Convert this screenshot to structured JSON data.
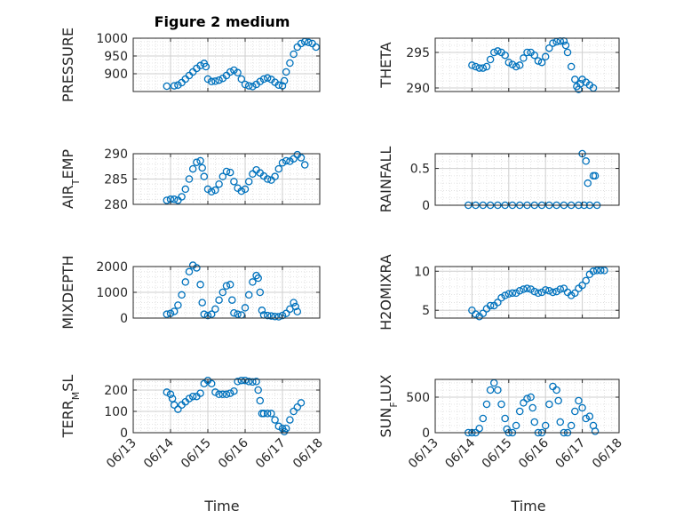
{
  "figure": {
    "title": "Figure 2 medium",
    "x_axis_label": "Time"
  },
  "style": {
    "marker_color": "#0072BD",
    "grid_color": "#dcdcdc",
    "axis_color": "#262626"
  },
  "x_ticks": [
    "06/13",
    "06/14",
    "06/15",
    "06/16",
    "06/17",
    "06/18"
  ],
  "chart_data": [
    {
      "type": "scatter",
      "ylabel_main": "PRESSURE",
      "ylabel_sub": "",
      "ylabel_rest": "",
      "ylim": [
        850,
        1000
      ],
      "yticks": [
        900,
        950,
        1000
      ],
      "xlim": [
        0,
        5
      ],
      "grid": true,
      "points": [
        [
          0.9,
          865
        ],
        [
          1.1,
          866
        ],
        [
          1.2,
          868
        ],
        [
          1.3,
          875
        ],
        [
          1.4,
          885
        ],
        [
          1.5,
          895
        ],
        [
          1.6,
          905
        ],
        [
          1.7,
          915
        ],
        [
          1.8,
          923
        ],
        [
          1.9,
          929
        ],
        [
          1.95,
          920
        ],
        [
          2.0,
          885
        ],
        [
          2.1,
          878
        ],
        [
          2.2,
          879
        ],
        [
          2.3,
          882
        ],
        [
          2.4,
          887
        ],
        [
          2.5,
          895
        ],
        [
          2.6,
          905
        ],
        [
          2.7,
          910
        ],
        [
          2.8,
          903
        ],
        [
          2.9,
          885
        ],
        [
          3.0,
          870
        ],
        [
          3.1,
          866
        ],
        [
          3.2,
          864
        ],
        [
          3.3,
          870
        ],
        [
          3.4,
          878
        ],
        [
          3.5,
          885
        ],
        [
          3.6,
          888
        ],
        [
          3.7,
          884
        ],
        [
          3.8,
          876
        ],
        [
          3.9,
          868
        ],
        [
          4.0,
          866
        ],
        [
          4.05,
          880
        ],
        [
          4.1,
          905
        ],
        [
          4.2,
          930
        ],
        [
          4.3,
          955
        ],
        [
          4.4,
          975
        ],
        [
          4.5,
          985
        ],
        [
          4.6,
          990
        ],
        [
          4.7,
          988
        ],
        [
          4.8,
          985
        ],
        [
          4.9,
          975
        ]
      ]
    },
    {
      "type": "scatter",
      "ylabel_main": "THETA",
      "ylabel_sub": "",
      "ylabel_rest": "",
      "ylim": [
        289.5,
        297
      ],
      "yticks": [
        290,
        295
      ],
      "xlim": [
        0,
        5
      ],
      "grid": true,
      "points": [
        [
          1.0,
          293.2
        ],
        [
          1.1,
          293.0
        ],
        [
          1.2,
          292.8
        ],
        [
          1.3,
          292.8
        ],
        [
          1.4,
          293.0
        ],
        [
          1.5,
          294.0
        ],
        [
          1.6,
          295.0
        ],
        [
          1.7,
          295.2
        ],
        [
          1.8,
          295.0
        ],
        [
          1.9,
          294.6
        ],
        [
          2.0,
          293.6
        ],
        [
          2.1,
          293.3
        ],
        [
          2.2,
          293.0
        ],
        [
          2.3,
          293.2
        ],
        [
          2.4,
          294.2
        ],
        [
          2.5,
          295.0
        ],
        [
          2.6,
          295.0
        ],
        [
          2.7,
          294.6
        ],
        [
          2.8,
          293.8
        ],
        [
          2.9,
          293.6
        ],
        [
          3.0,
          294.4
        ],
        [
          3.1,
          295.6
        ],
        [
          3.2,
          296.3
        ],
        [
          3.3,
          296.5
        ],
        [
          3.4,
          296.6
        ],
        [
          3.5,
          296.6
        ],
        [
          3.55,
          296.0
        ],
        [
          3.6,
          295.0
        ],
        [
          3.7,
          293.0
        ],
        [
          3.8,
          291.2
        ],
        [
          3.85,
          290.2
        ],
        [
          3.9,
          289.8
        ],
        [
          3.95,
          290.6
        ],
        [
          4.0,
          291.2
        ],
        [
          4.1,
          290.8
        ],
        [
          4.2,
          290.4
        ],
        [
          4.3,
          290.0
        ]
      ]
    },
    {
      "type": "scatter",
      "ylabel_main": "AIR",
      "ylabel_sub": "T",
      "ylabel_rest": "EMP",
      "ylim": [
        280,
        290
      ],
      "yticks": [
        280,
        285,
        290
      ],
      "xlim": [
        0,
        5
      ],
      "grid": true,
      "points": [
        [
          0.9,
          280.8
        ],
        [
          1.0,
          281.0
        ],
        [
          1.1,
          281.0
        ],
        [
          1.2,
          280.8
        ],
        [
          1.3,
          281.5
        ],
        [
          1.4,
          283.0
        ],
        [
          1.5,
          285.0
        ],
        [
          1.6,
          287.0
        ],
        [
          1.7,
          288.3
        ],
        [
          1.8,
          288.6
        ],
        [
          1.85,
          287.2
        ],
        [
          1.9,
          285.5
        ],
        [
          2.0,
          283.0
        ],
        [
          2.1,
          282.5
        ],
        [
          2.2,
          282.8
        ],
        [
          2.3,
          284.0
        ],
        [
          2.4,
          285.5
        ],
        [
          2.5,
          286.5
        ],
        [
          2.6,
          286.3
        ],
        [
          2.7,
          284.5
        ],
        [
          2.8,
          283.2
        ],
        [
          2.9,
          282.6
        ],
        [
          3.0,
          283.0
        ],
        [
          3.1,
          284.5
        ],
        [
          3.2,
          286.0
        ],
        [
          3.3,
          286.8
        ],
        [
          3.4,
          286.2
        ],
        [
          3.5,
          285.6
        ],
        [
          3.6,
          285.0
        ],
        [
          3.7,
          284.8
        ],
        [
          3.8,
          285.5
        ],
        [
          3.9,
          287.0
        ],
        [
          4.0,
          288.2
        ],
        [
          4.1,
          288.6
        ],
        [
          4.2,
          288.5
        ],
        [
          4.3,
          289.0
        ],
        [
          4.4,
          289.8
        ],
        [
          4.5,
          289.2
        ],
        [
          4.6,
          287.8
        ]
      ]
    },
    {
      "type": "scatter",
      "ylabel_main": "RAINFALL",
      "ylabel_sub": "",
      "ylabel_rest": "",
      "ylim": [
        0,
        0.7
      ],
      "yticks": [
        0,
        0.5
      ],
      "xlim": [
        0,
        5
      ],
      "grid": true,
      "points": [
        [
          0.9,
          0
        ],
        [
          1.1,
          0
        ],
        [
          1.3,
          0
        ],
        [
          1.5,
          0
        ],
        [
          1.7,
          0
        ],
        [
          1.9,
          0
        ],
        [
          2.1,
          0
        ],
        [
          2.3,
          0
        ],
        [
          2.5,
          0
        ],
        [
          2.7,
          0
        ],
        [
          2.9,
          0
        ],
        [
          3.1,
          0
        ],
        [
          3.3,
          0
        ],
        [
          3.5,
          0
        ],
        [
          3.7,
          0
        ],
        [
          3.9,
          0
        ],
        [
          4.0,
          0.7
        ],
        [
          4.05,
          0
        ],
        [
          4.1,
          0.6
        ],
        [
          4.15,
          0.3
        ],
        [
          4.2,
          0
        ],
        [
          4.3,
          0.4
        ],
        [
          4.35,
          0.4
        ],
        [
          4.4,
          0
        ]
      ]
    },
    {
      "type": "scatter",
      "ylabel_main": "MIXDEPTH",
      "ylabel_sub": "",
      "ylabel_rest": "",
      "ylim": [
        0,
        2000
      ],
      "yticks": [
        0,
        1000,
        2000
      ],
      "xlim": [
        0,
        5
      ],
      "grid": true,
      "points": [
        [
          0.9,
          150
        ],
        [
          1.0,
          180
        ],
        [
          1.1,
          260
        ],
        [
          1.2,
          500
        ],
        [
          1.3,
          900
        ],
        [
          1.4,
          1400
        ],
        [
          1.5,
          1800
        ],
        [
          1.6,
          2050
        ],
        [
          1.7,
          1950
        ],
        [
          1.8,
          1300
        ],
        [
          1.85,
          600
        ],
        [
          1.9,
          150
        ],
        [
          2.0,
          100
        ],
        [
          2.1,
          150
        ],
        [
          2.2,
          350
        ],
        [
          2.3,
          700
        ],
        [
          2.4,
          1000
        ],
        [
          2.5,
          1250
        ],
        [
          2.6,
          1300
        ],
        [
          2.65,
          700
        ],
        [
          2.7,
          200
        ],
        [
          2.8,
          150
        ],
        [
          2.9,
          120
        ],
        [
          3.0,
          400
        ],
        [
          3.1,
          900
        ],
        [
          3.2,
          1400
        ],
        [
          3.3,
          1650
        ],
        [
          3.35,
          1550
        ],
        [
          3.4,
          1000
        ],
        [
          3.45,
          300
        ],
        [
          3.5,
          120
        ],
        [
          3.6,
          100
        ],
        [
          3.7,
          80
        ],
        [
          3.8,
          60
        ],
        [
          3.9,
          50
        ],
        [
          4.0,
          100
        ],
        [
          4.1,
          180
        ],
        [
          4.2,
          350
        ],
        [
          4.3,
          600
        ],
        [
          4.35,
          450
        ],
        [
          4.4,
          250
        ]
      ]
    },
    {
      "type": "scatter",
      "ylabel_main": "H2OMIXRA",
      "ylabel_sub": "",
      "ylabel_rest": "",
      "ylim": [
        4,
        10.6
      ],
      "yticks": [
        5,
        10
      ],
      "xlim": [
        0,
        5
      ],
      "grid": true,
      "points": [
        [
          1.0,
          5.0
        ],
        [
          1.1,
          4.5
        ],
        [
          1.2,
          4.2
        ],
        [
          1.3,
          4.6
        ],
        [
          1.4,
          5.2
        ],
        [
          1.5,
          5.6
        ],
        [
          1.6,
          5.6
        ],
        [
          1.7,
          6.0
        ],
        [
          1.8,
          6.6
        ],
        [
          1.9,
          6.9
        ],
        [
          2.0,
          7.1
        ],
        [
          2.1,
          7.2
        ],
        [
          2.2,
          7.2
        ],
        [
          2.3,
          7.5
        ],
        [
          2.4,
          7.7
        ],
        [
          2.5,
          7.8
        ],
        [
          2.6,
          7.7
        ],
        [
          2.7,
          7.4
        ],
        [
          2.8,
          7.2
        ],
        [
          2.9,
          7.3
        ],
        [
          3.0,
          7.6
        ],
        [
          3.1,
          7.5
        ],
        [
          3.2,
          7.3
        ],
        [
          3.3,
          7.4
        ],
        [
          3.4,
          7.7
        ],
        [
          3.5,
          7.8
        ],
        [
          3.6,
          7.3
        ],
        [
          3.7,
          6.9
        ],
        [
          3.8,
          7.2
        ],
        [
          3.9,
          7.8
        ],
        [
          4.0,
          8.2
        ],
        [
          4.1,
          8.8
        ],
        [
          4.2,
          9.6
        ],
        [
          4.3,
          10.0
        ],
        [
          4.4,
          10.1
        ],
        [
          4.5,
          10.1
        ],
        [
          4.6,
          10.1
        ]
      ]
    },
    {
      "type": "scatter",
      "ylabel_main": "TERR",
      "ylabel_sub": "M",
      "ylabel_rest": "SL",
      "ylim": [
        0,
        250
      ],
      "yticks": [
        0,
        100,
        200
      ],
      "xlim": [
        0,
        5
      ],
      "grid": true,
      "points": [
        [
          0.9,
          190
        ],
        [
          1.0,
          180
        ],
        [
          1.05,
          160
        ],
        [
          1.1,
          130
        ],
        [
          1.2,
          110
        ],
        [
          1.3,
          130
        ],
        [
          1.4,
          145
        ],
        [
          1.5,
          160
        ],
        [
          1.6,
          170
        ],
        [
          1.7,
          170
        ],
        [
          1.8,
          185
        ],
        [
          1.9,
          230
        ],
        [
          2.0,
          245
        ],
        [
          2.1,
          230
        ],
        [
          2.2,
          190
        ],
        [
          2.3,
          180
        ],
        [
          2.4,
          180
        ],
        [
          2.5,
          180
        ],
        [
          2.6,
          185
        ],
        [
          2.7,
          195
        ],
        [
          2.8,
          240
        ],
        [
          2.9,
          245
        ],
        [
          3.0,
          245
        ],
        [
          3.1,
          240
        ],
        [
          3.2,
          238
        ],
        [
          3.3,
          240
        ],
        [
          3.35,
          200
        ],
        [
          3.4,
          150
        ],
        [
          3.45,
          90
        ],
        [
          3.5,
          90
        ],
        [
          3.6,
          90
        ],
        [
          3.7,
          90
        ],
        [
          3.8,
          60
        ],
        [
          3.9,
          30
        ],
        [
          4.0,
          20
        ],
        [
          4.05,
          5
        ],
        [
          4.1,
          20
        ],
        [
          4.2,
          60
        ],
        [
          4.3,
          100
        ],
        [
          4.4,
          120
        ],
        [
          4.5,
          140
        ]
      ]
    },
    {
      "type": "scatter",
      "ylabel_main": "SUN",
      "ylabel_sub": "F",
      "ylabel_rest": "LUX",
      "ylim": [
        0,
        750
      ],
      "yticks": [
        0,
        500
      ],
      "xlim": [
        0,
        5
      ],
      "grid": true,
      "points": [
        [
          0.9,
          0
        ],
        [
          1.0,
          0
        ],
        [
          1.1,
          0
        ],
        [
          1.2,
          60
        ],
        [
          1.3,
          200
        ],
        [
          1.4,
          400
        ],
        [
          1.5,
          600
        ],
        [
          1.6,
          700
        ],
        [
          1.7,
          600
        ],
        [
          1.8,
          400
        ],
        [
          1.9,
          200
        ],
        [
          1.95,
          50
        ],
        [
          2.0,
          0
        ],
        [
          2.1,
          0
        ],
        [
          2.2,
          100
        ],
        [
          2.3,
          300
        ],
        [
          2.4,
          420
        ],
        [
          2.5,
          480
        ],
        [
          2.6,
          500
        ],
        [
          2.65,
          350
        ],
        [
          2.7,
          150
        ],
        [
          2.8,
          0
        ],
        [
          2.9,
          0
        ],
        [
          3.0,
          100
        ],
        [
          3.1,
          400
        ],
        [
          3.2,
          650
        ],
        [
          3.3,
          600
        ],
        [
          3.35,
          450
        ],
        [
          3.4,
          150
        ],
        [
          3.5,
          0
        ],
        [
          3.6,
          0
        ],
        [
          3.7,
          100
        ],
        [
          3.8,
          300
        ],
        [
          3.9,
          450
        ],
        [
          4.0,
          350
        ],
        [
          4.1,
          200
        ],
        [
          4.2,
          230
        ],
        [
          4.3,
          100
        ],
        [
          4.35,
          20
        ]
      ]
    }
  ]
}
